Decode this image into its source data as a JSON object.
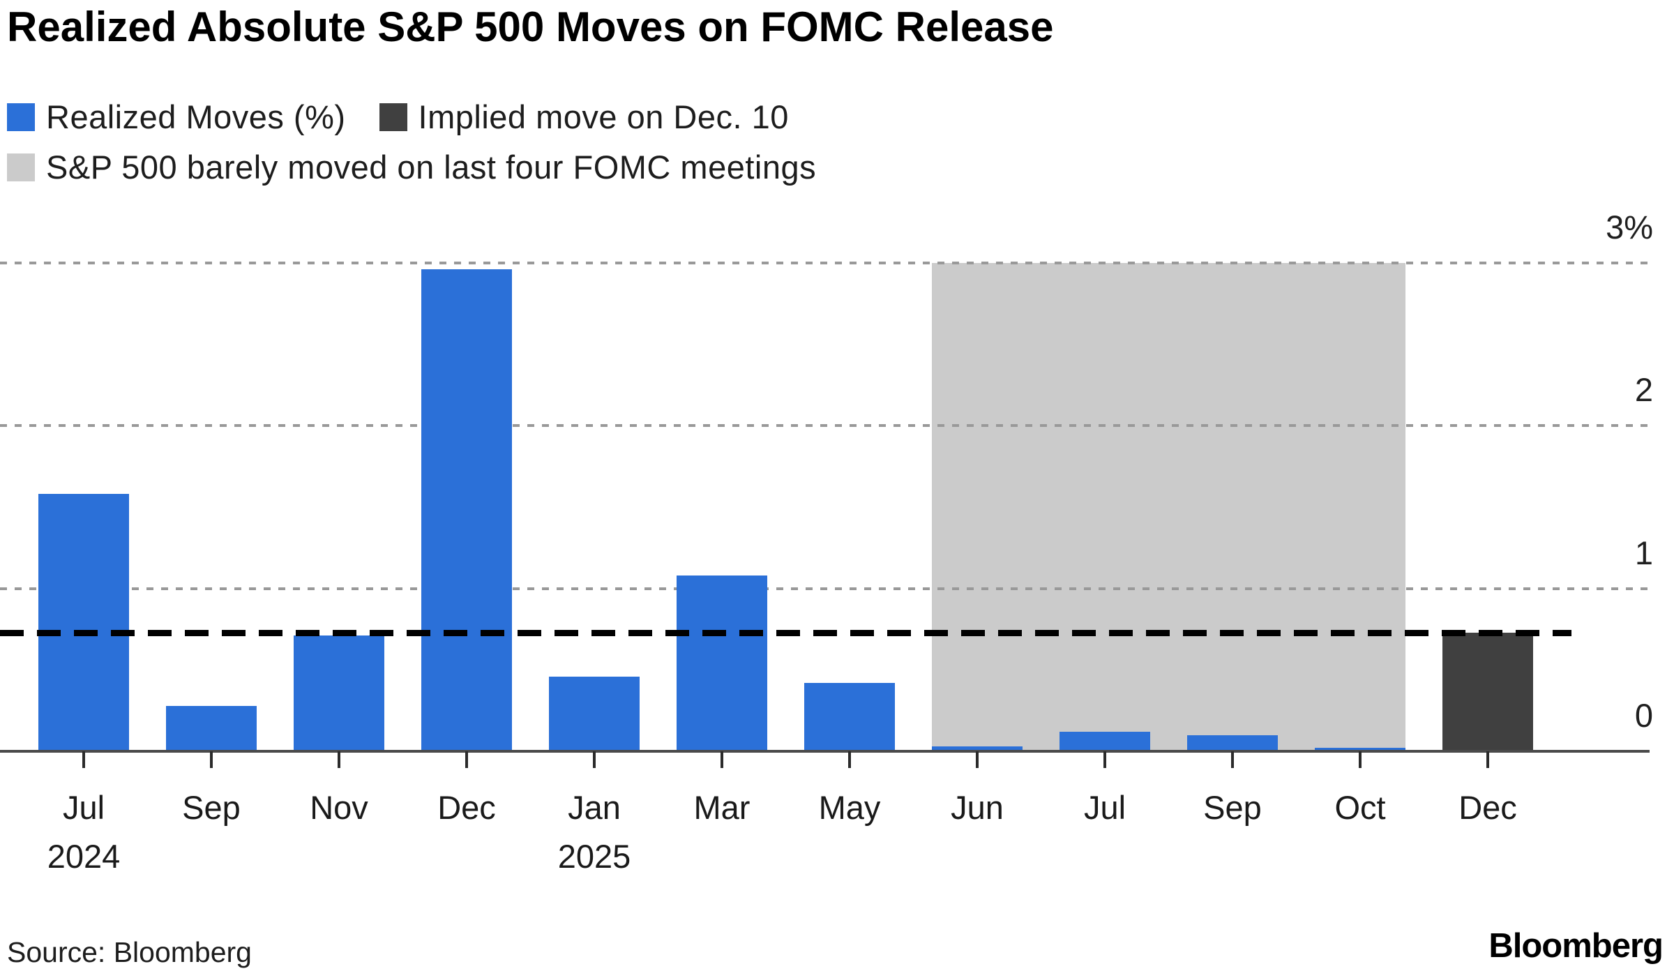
{
  "title": "Realized Absolute S&P 500 Moves on FOMC Release",
  "source": "Source: Bloomberg",
  "brand_logo": "Bloomberg",
  "colors": {
    "realized_blue": "#2b70d8",
    "implied_dark": "#404040",
    "band_gray": "#cbcbcb",
    "gridline_gray": "#999999",
    "axis_gray": "#4a4a4a",
    "reference_black": "#000000"
  },
  "legend": {
    "rows": [
      [
        {
          "swatch": "#2b70d8",
          "label": "Realized Moves (%)"
        },
        {
          "swatch": "#404040",
          "label": "Implied move on Dec. 10"
        }
      ],
      [
        {
          "swatch": "#cbcbcb",
          "label": "S&P 500 barely moved on last four FOMC meetings"
        }
      ]
    ]
  },
  "chart_data": {
    "type": "bar",
    "unit": "%",
    "x_categories": [
      {
        "label": "Jul",
        "sublabel": "2024"
      },
      {
        "label": "Sep"
      },
      {
        "label": "Nov"
      },
      {
        "label": "Dec"
      },
      {
        "label": "Jan",
        "sublabel": "2025"
      },
      {
        "label": "Mar"
      },
      {
        "label": "May"
      },
      {
        "label": "Jun"
      },
      {
        "label": "Jul"
      },
      {
        "label": "Sep"
      },
      {
        "label": "Oct"
      },
      {
        "label": "Dec"
      }
    ],
    "series": [
      {
        "name": "Realized Moves (%)",
        "color": "#2b70d8",
        "values": [
          1.58,
          0.28,
          0.71,
          2.96,
          0.46,
          1.08,
          0.42,
          0.03,
          0.12,
          0.1,
          0.02,
          null
        ]
      },
      {
        "name": "Implied move on Dec. 10",
        "color": "#404040",
        "values": [
          null,
          null,
          null,
          null,
          null,
          null,
          null,
          null,
          null,
          null,
          null,
          0.73
        ]
      }
    ],
    "reference_line": {
      "value": 0.73,
      "style": "dashed",
      "color": "#000000"
    },
    "highlight_band": {
      "label": "S&P 500 barely moved on last four FOMC meetings",
      "color": "#cbcbcb",
      "from_index": 7,
      "to_index": 10,
      "top_value": 3.0
    },
    "y_axis": {
      "side": "right",
      "min": 0,
      "max": 3.2,
      "ticks": [
        0,
        1,
        2,
        3
      ],
      "tick_labels": [
        "0",
        "1",
        "2",
        "3%"
      ],
      "gridlines": [
        1,
        2,
        3
      ],
      "gridline_style": "dotted"
    }
  }
}
